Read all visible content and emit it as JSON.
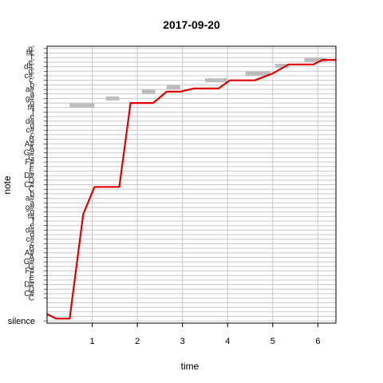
{
  "chart_data": {
    "type": "line",
    "title": "2017-09-20",
    "xlabel": "time",
    "ylabel": "note",
    "xlim": [
      0,
      6.4
    ],
    "x_ticks": [
      1,
      2,
      3,
      4,
      5,
      6
    ],
    "y_levels": 60,
    "y_tick_labels": [
      {
        "level": 0,
        "label": "silence"
      },
      {
        "level": 5,
        "label": "C"
      },
      {
        "level": 6,
        "label": "C#"
      },
      {
        "level": 7,
        "label": "D"
      },
      {
        "level": 8,
        "label": "D#"
      },
      {
        "level": 9,
        "label": "E"
      },
      {
        "level": 10,
        "label": "F"
      },
      {
        "level": 11,
        "label": "F#"
      },
      {
        "level": 12,
        "label": "G"
      },
      {
        "level": 13,
        "label": "G#"
      },
      {
        "level": 14,
        "label": "A"
      },
      {
        "level": 15,
        "label": "A#"
      },
      {
        "level": 16,
        "label": "B"
      },
      {
        "level": 17,
        "label": "c"
      },
      {
        "level": 18,
        "label": "c#"
      },
      {
        "level": 19,
        "label": "d"
      },
      {
        "level": 20,
        "label": "d#"
      },
      {
        "level": 21,
        "label": "e"
      },
      {
        "level": 22,
        "label": "f"
      },
      {
        "level": 23,
        "label": "f#"
      },
      {
        "level": 24,
        "label": "g"
      },
      {
        "level": 25,
        "label": "g#"
      },
      {
        "level": 26,
        "label": "a"
      },
      {
        "level": 27,
        "label": "a#"
      },
      {
        "level": 28,
        "label": "b"
      },
      {
        "level": 29,
        "label": "C"
      },
      {
        "level": 30,
        "label": "C#"
      },
      {
        "level": 31,
        "label": "D"
      },
      {
        "level": 32,
        "label": "D#"
      },
      {
        "level": 33,
        "label": "E"
      },
      {
        "level": 34,
        "label": "F"
      },
      {
        "level": 35,
        "label": "F#"
      },
      {
        "level": 36,
        "label": "G"
      },
      {
        "level": 37,
        "label": "G#"
      },
      {
        "level": 38,
        "label": "A"
      },
      {
        "level": 39,
        "label": "A#"
      },
      {
        "level": 40,
        "label": "B"
      },
      {
        "level": 41,
        "label": "c"
      },
      {
        "level": 42,
        "label": "c#"
      },
      {
        "level": 43,
        "label": "d"
      },
      {
        "level": 44,
        "label": "d#"
      },
      {
        "level": 45,
        "label": "e"
      },
      {
        "level": 46,
        "label": "f"
      },
      {
        "level": 47,
        "label": "f#"
      },
      {
        "level": 48,
        "label": "g"
      },
      {
        "level": 49,
        "label": "g#"
      },
      {
        "level": 50,
        "label": "a"
      },
      {
        "level": 51,
        "label": "a#"
      },
      {
        "level": 52,
        "label": "b"
      },
      {
        "level": 53,
        "label": "c'"
      },
      {
        "level": 54,
        "label": "c#'"
      },
      {
        "level": 55,
        "label": "d'"
      },
      {
        "level": 56,
        "label": "d#'"
      },
      {
        "level": 57,
        "label": "e'"
      },
      {
        "level": 58,
        "label": "f'"
      },
      {
        "level": 59,
        "label": "f#'"
      },
      {
        "level": 60,
        "label": "g'"
      }
    ],
    "series": [
      {
        "color": "#e00000",
        "points": [
          [
            0.0,
            1.5
          ],
          [
            0.2,
            0.5
          ],
          [
            0.5,
            0.5
          ],
          [
            0.8,
            23.5
          ],
          [
            1.05,
            29.5
          ],
          [
            1.6,
            29.5
          ],
          [
            1.85,
            48.0
          ],
          [
            2.35,
            48.0
          ],
          [
            2.65,
            50.5
          ],
          [
            2.95,
            50.5
          ],
          [
            3.25,
            51.2
          ],
          [
            3.8,
            51.2
          ],
          [
            4.05,
            53.0
          ],
          [
            4.6,
            53.0
          ],
          [
            5.0,
            54.5
          ],
          [
            5.35,
            56.5
          ],
          [
            5.9,
            56.5
          ],
          [
            6.1,
            57.5
          ],
          [
            6.4,
            57.5
          ]
        ]
      }
    ],
    "reference_segments": {
      "color": "#bdbdbd",
      "items": [
        {
          "x0": 0.5,
          "x1": 1.05,
          "y": 47.5
        },
        {
          "x0": 1.3,
          "x1": 1.6,
          "y": 49.0
        },
        {
          "x0": 2.1,
          "x1": 2.4,
          "y": 50.5
        },
        {
          "x0": 2.65,
          "x1": 2.95,
          "y": 51.5
        },
        {
          "x0": 3.5,
          "x1": 4.0,
          "y": 53.0
        },
        {
          "x0": 4.4,
          "x1": 4.95,
          "y": 54.5
        },
        {
          "x0": 5.05,
          "x1": 5.35,
          "y": 56.2
        },
        {
          "x0": 5.7,
          "x1": 6.2,
          "y": 57.5
        }
      ]
    },
    "grid": true
  }
}
